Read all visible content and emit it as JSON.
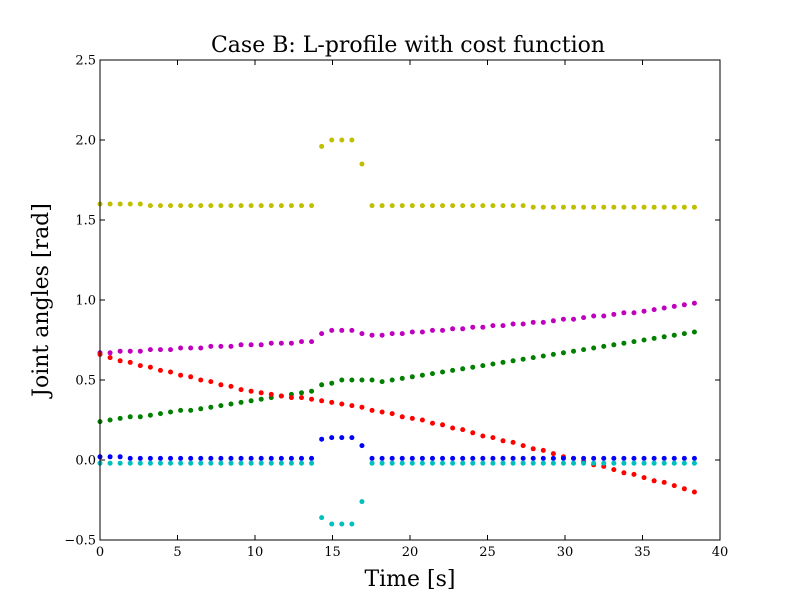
{
  "chart_data": {
    "type": "scatter",
    "title": "Case B: L-profile with cost function",
    "xlabel": "Time [s]",
    "ylabel": "Joint angles [rad]",
    "xlim": [
      0,
      40
    ],
    "ylim": [
      -0.5,
      2.5
    ],
    "xticks": [
      0,
      5,
      10,
      15,
      20,
      25,
      30,
      35,
      40
    ],
    "xtick_labels": [
      "0",
      "5",
      "10",
      "15",
      "20",
      "25",
      "30",
      "35",
      "40"
    ],
    "yticks": [
      -0.5,
      0.0,
      0.5,
      1.0,
      1.5,
      2.0,
      2.5
    ],
    "ytick_labels": [
      "−0.5",
      "0.0",
      "0.5",
      "1.0",
      "1.5",
      "2.0",
      "2.5"
    ],
    "grid": false,
    "legend": "none",
    "x": [
      0,
      0.65,
      1.3,
      1.95,
      2.6,
      3.25,
      3.9,
      4.55,
      5.2,
      5.85,
      6.5,
      7.15,
      7.8,
      8.45,
      9.1,
      9.75,
      10.4,
      11.05,
      11.7,
      12.35,
      13.0,
      13.65,
      14.3,
      14.95,
      15.6,
      16.25,
      16.9,
      17.55,
      18.2,
      18.85,
      19.5,
      20.15,
      20.8,
      21.45,
      22.1,
      22.75,
      23.4,
      24.05,
      24.7,
      25.35,
      26.0,
      26.65,
      27.3,
      27.95,
      28.6,
      29.25,
      29.9,
      30.55,
      31.2,
      31.85,
      32.5,
      33.15,
      33.8,
      34.45,
      35.1,
      35.75,
      36.4,
      37.05,
      37.7,
      38.35
    ],
    "series": [
      {
        "color": "#bfbf00",
        "values": [
          1.6,
          1.6,
          1.6,
          1.6,
          1.6,
          1.59,
          1.59,
          1.59,
          1.59,
          1.59,
          1.59,
          1.59,
          1.59,
          1.59,
          1.59,
          1.59,
          1.59,
          1.59,
          1.59,
          1.59,
          1.59,
          1.59,
          1.96,
          2.0,
          2.0,
          2.0,
          1.85,
          1.59,
          1.59,
          1.59,
          1.59,
          1.59,
          1.59,
          1.59,
          1.59,
          1.59,
          1.59,
          1.59,
          1.59,
          1.59,
          1.59,
          1.59,
          1.59,
          1.58,
          1.58,
          1.58,
          1.58,
          1.58,
          1.58,
          1.58,
          1.58,
          1.58,
          1.58,
          1.58,
          1.58,
          1.58,
          1.58,
          1.58,
          1.58,
          1.58
        ]
      },
      {
        "color": "#bf00bf",
        "values": [
          0.67,
          0.67,
          0.68,
          0.68,
          0.68,
          0.69,
          0.69,
          0.69,
          0.7,
          0.7,
          0.7,
          0.71,
          0.71,
          0.71,
          0.72,
          0.72,
          0.72,
          0.73,
          0.73,
          0.73,
          0.74,
          0.74,
          0.79,
          0.81,
          0.81,
          0.81,
          0.79,
          0.78,
          0.78,
          0.79,
          0.79,
          0.8,
          0.8,
          0.81,
          0.81,
          0.82,
          0.82,
          0.83,
          0.83,
          0.84,
          0.84,
          0.85,
          0.85,
          0.86,
          0.86,
          0.87,
          0.88,
          0.88,
          0.89,
          0.9,
          0.9,
          0.91,
          0.92,
          0.92,
          0.93,
          0.94,
          0.95,
          0.96,
          0.97,
          0.98
        ]
      },
      {
        "color": "#007f00",
        "values": [
          0.24,
          0.25,
          0.26,
          0.27,
          0.27,
          0.28,
          0.29,
          0.3,
          0.31,
          0.31,
          0.32,
          0.33,
          0.34,
          0.35,
          0.36,
          0.37,
          0.38,
          0.39,
          0.4,
          0.41,
          0.42,
          0.43,
          0.47,
          0.48,
          0.5,
          0.5,
          0.5,
          0.5,
          0.49,
          0.5,
          0.51,
          0.52,
          0.53,
          0.54,
          0.55,
          0.56,
          0.57,
          0.58,
          0.59,
          0.6,
          0.61,
          0.62,
          0.63,
          0.64,
          0.65,
          0.66,
          0.67,
          0.68,
          0.69,
          0.7,
          0.71,
          0.72,
          0.73,
          0.74,
          0.75,
          0.76,
          0.77,
          0.78,
          0.79,
          0.8
        ]
      },
      {
        "color": "#ff0000",
        "values": [
          0.66,
          0.64,
          0.62,
          0.61,
          0.59,
          0.58,
          0.56,
          0.55,
          0.53,
          0.52,
          0.5,
          0.49,
          0.47,
          0.46,
          0.44,
          0.43,
          0.42,
          0.41,
          0.4,
          0.39,
          0.39,
          0.38,
          0.37,
          0.36,
          0.35,
          0.34,
          0.33,
          0.31,
          0.3,
          0.29,
          0.27,
          0.26,
          0.25,
          0.23,
          0.22,
          0.2,
          0.19,
          0.17,
          0.15,
          0.14,
          0.12,
          0.11,
          0.09,
          0.07,
          0.06,
          0.04,
          0.02,
          0.01,
          -0.01,
          -0.03,
          -0.04,
          -0.06,
          -0.08,
          -0.09,
          -0.11,
          -0.13,
          -0.14,
          -0.16,
          -0.18,
          -0.2
        ]
      },
      {
        "color": "#0000ff",
        "values": [
          0.02,
          0.02,
          0.02,
          0.01,
          0.01,
          0.01,
          0.01,
          0.01,
          0.01,
          0.01,
          0.01,
          0.01,
          0.01,
          0.01,
          0.01,
          0.01,
          0.01,
          0.01,
          0.01,
          0.01,
          0.01,
          0.01,
          0.13,
          0.14,
          0.14,
          0.14,
          0.09,
          0.01,
          0.01,
          0.01,
          0.01,
          0.01,
          0.01,
          0.01,
          0.01,
          0.01,
          0.01,
          0.01,
          0.01,
          0.01,
          0.01,
          0.01,
          0.01,
          0.01,
          0.01,
          0.01,
          0.01,
          0.01,
          0.01,
          0.01,
          0.01,
          0.01,
          0.01,
          0.01,
          0.01,
          0.01,
          0.01,
          0.01,
          0.01,
          0.01
        ]
      },
      {
        "color": "#00bfbf",
        "values": [
          -0.02,
          -0.02,
          -0.02,
          -0.02,
          -0.02,
          -0.02,
          -0.02,
          -0.02,
          -0.02,
          -0.02,
          -0.02,
          -0.02,
          -0.02,
          -0.02,
          -0.02,
          -0.02,
          -0.02,
          -0.02,
          -0.02,
          -0.02,
          -0.02,
          -0.02,
          -0.36,
          -0.4,
          -0.4,
          -0.4,
          -0.26,
          -0.02,
          -0.02,
          -0.02,
          -0.02,
          -0.02,
          -0.02,
          -0.02,
          -0.02,
          -0.02,
          -0.02,
          -0.02,
          -0.02,
          -0.02,
          -0.02,
          -0.02,
          -0.02,
          -0.02,
          -0.02,
          -0.02,
          -0.02,
          -0.02,
          -0.02,
          -0.02,
          -0.02,
          -0.02,
          -0.02,
          -0.02,
          -0.02,
          -0.02,
          -0.02,
          -0.02,
          -0.02,
          -0.02
        ]
      }
    ]
  }
}
